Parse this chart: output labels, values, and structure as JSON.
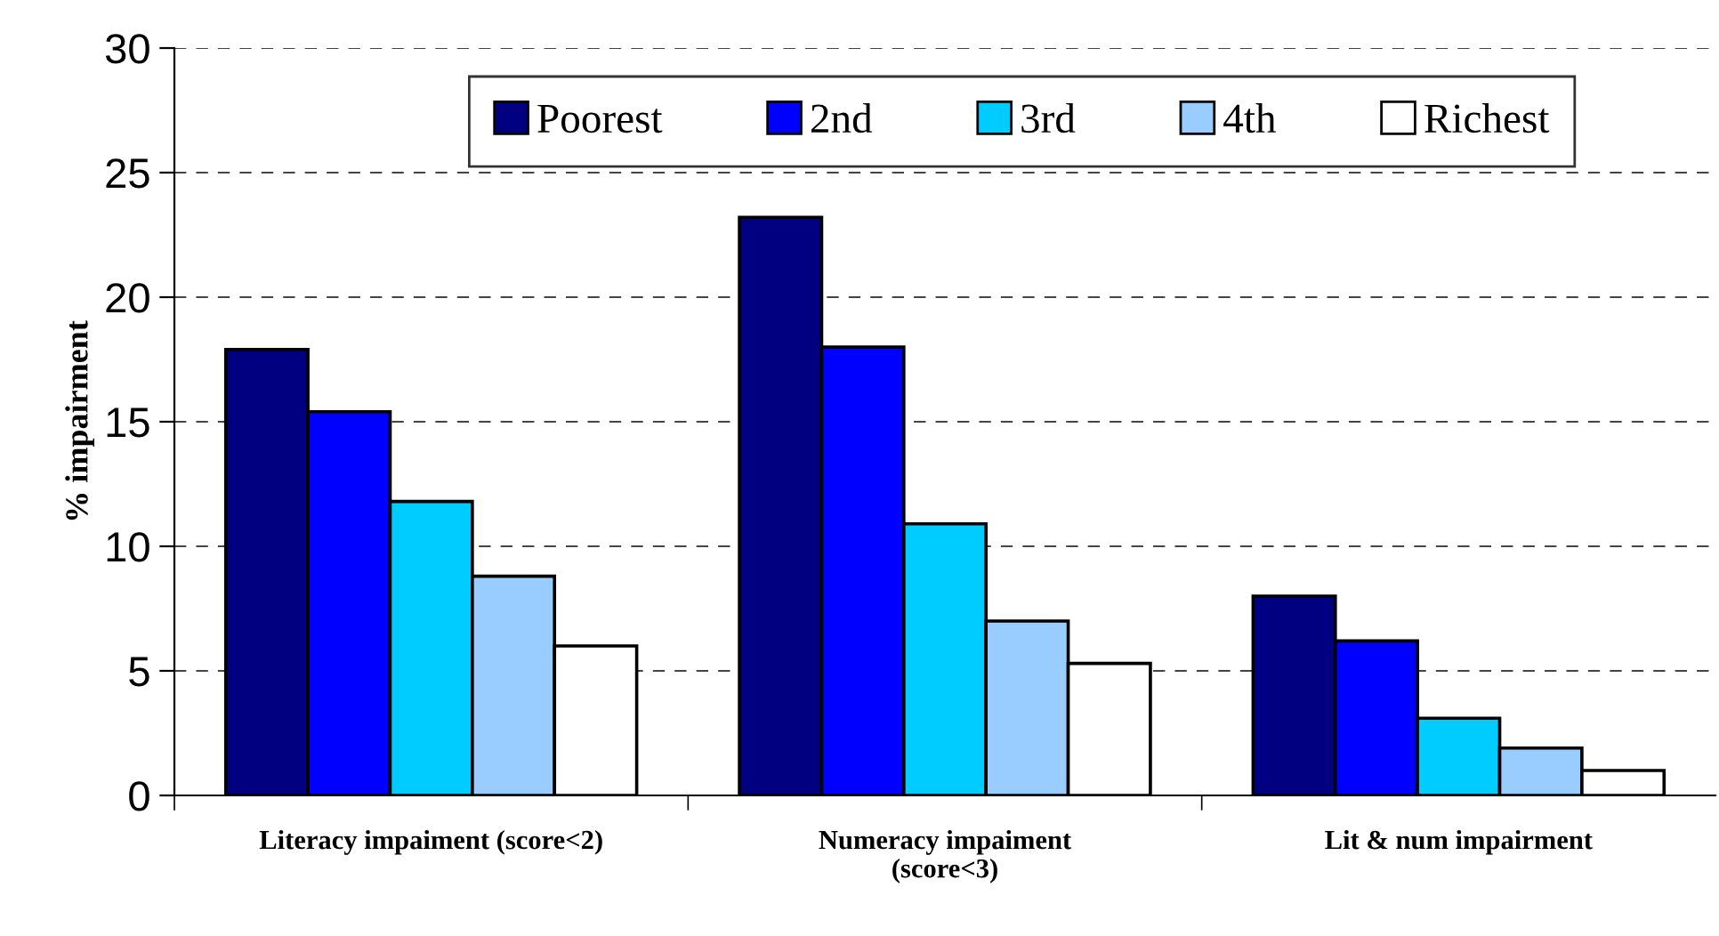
{
  "chart_data": {
    "type": "bar",
    "ylabel": "% impairment",
    "categories": [
      "Literacy impaiment (score<2)",
      "Numeracy impaiment\n(score<3)",
      "Lit & num impairment"
    ],
    "series": [
      {
        "name": "Poorest",
        "color": "#000080",
        "values": [
          17.9,
          23.2,
          8.0
        ]
      },
      {
        "name": "2nd",
        "color": "#0000ff",
        "values": [
          15.4,
          18.0,
          6.2
        ]
      },
      {
        "name": "3rd",
        "color": "#00ccff",
        "values": [
          11.8,
          10.9,
          3.1
        ]
      },
      {
        "name": "4th",
        "color": "#99ccff",
        "values": [
          8.8,
          7.0,
          1.9
        ]
      },
      {
        "name": "Richest",
        "color": "#ffffff",
        "values": [
          6.0,
          5.3,
          1.0
        ]
      }
    ],
    "ylim": [
      0,
      30
    ],
    "yticks": [
      0,
      5,
      10,
      15,
      20,
      25,
      30
    ],
    "grid": "y",
    "legend": "top"
  }
}
